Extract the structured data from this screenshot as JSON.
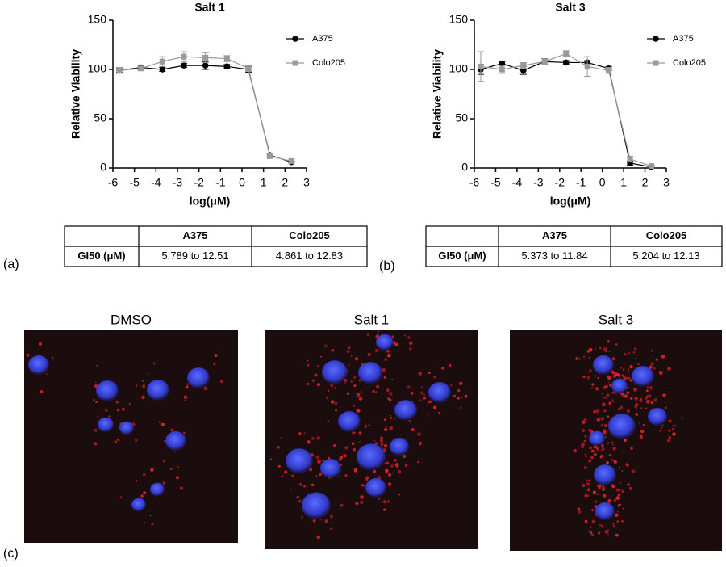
{
  "chart_data": [
    {
      "type": "line",
      "title": "Salt 1",
      "y_label": "Relative Viability",
      "x_label": "log(μM)",
      "x": [
        -5.7,
        -4.7,
        -3.7,
        -2.7,
        -1.7,
        -0.7,
        0.3,
        1.3,
        2.3
      ],
      "series": [
        {
          "name": "A375",
          "color": "#000000",
          "marker": "circle",
          "values": [
            99,
            102,
            100,
            104,
            104,
            103,
            100,
            13,
            6
          ],
          "errors": [
            2,
            2,
            2,
            2,
            4,
            2,
            3,
            2,
            1
          ]
        },
        {
          "name": "Colo205",
          "color": "#999999",
          "marker": "square",
          "values": [
            99,
            101,
            108,
            113,
            112,
            111,
            101,
            12,
            7
          ],
          "errors": [
            3,
            2,
            5,
            5,
            5,
            3,
            3,
            2,
            2
          ]
        }
      ],
      "xlim": [
        -6,
        3
      ],
      "xticks": [
        -6,
        -5,
        -4,
        -3,
        -2,
        -1,
        0,
        1,
        2,
        3
      ],
      "ylim": [
        0,
        150
      ],
      "yticks": [
        0,
        50,
        100,
        150
      ],
      "legend": "upper right"
    },
    {
      "type": "line",
      "title": "Salt 3",
      "y_label": "Relative Viability",
      "x_label": "log(μM)",
      "x": [
        -5.7,
        -4.7,
        -3.7,
        -2.7,
        -1.7,
        -0.7,
        0.3,
        1.3,
        2.3
      ],
      "series": [
        {
          "name": "A375",
          "color": "#000000",
          "marker": "circle",
          "values": [
            100,
            106,
            99,
            108,
            107,
            107,
            101,
            5,
            1
          ],
          "errors": [
            5,
            2,
            4,
            3,
            2,
            2,
            2,
            2,
            1
          ]
        },
        {
          "name": "Colo205",
          "color": "#999999",
          "marker": "square",
          "values": [
            103,
            100,
            104,
            108,
            116,
            103,
            99,
            9,
            2
          ],
          "errors": [
            15,
            4,
            3,
            3,
            3,
            10,
            3,
            3,
            1
          ]
        }
      ],
      "xlim": [
        -6,
        3
      ],
      "xticks": [
        -6,
        -5,
        -4,
        -3,
        -2,
        -1,
        0,
        1,
        2,
        3
      ],
      "ylim": [
        0,
        150
      ],
      "yticks": [
        0,
        50,
        100,
        150
      ],
      "legend": "upper right"
    }
  ],
  "tables": [
    {
      "columns": [
        "A375",
        "Colo205"
      ],
      "row_label": "GI50 (μM)",
      "cells": [
        "5.789 to 12.51",
        "4.861 to 12.83"
      ]
    },
    {
      "columns": [
        "A375",
        "Colo205"
      ],
      "row_label": "GI50 (μM)",
      "cells": [
        "5.373 to 11.84",
        "5.204 to 12.13"
      ]
    }
  ],
  "panel_labels": [
    "(a)",
    "(b)",
    "(c)"
  ],
  "images": [
    {
      "label": "DMSO"
    },
    {
      "label": "Salt 1"
    },
    {
      "label": "Salt 3"
    }
  ]
}
